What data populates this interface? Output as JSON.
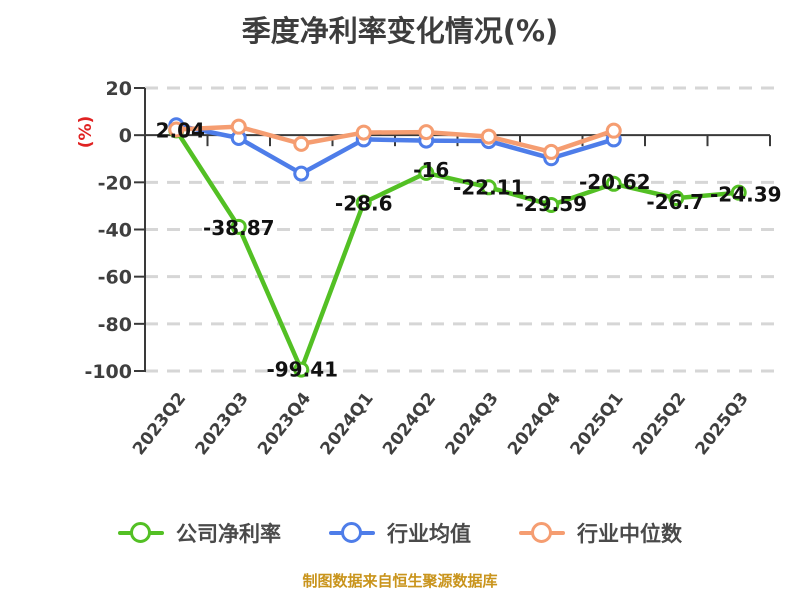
{
  "title": "季度净利率变化情况(%)",
  "y_axis_unit": "(%)",
  "source_note": "制图数据来自恒生聚源数据库",
  "colors": {
    "company": "#53c024",
    "industry_avg": "#4e7de9",
    "industry_median": "#f59d71",
    "title_text": "#3d3d3d",
    "axis_text": "#3f3f3f",
    "data_label_text": "#111111",
    "unit_label": "#e02222",
    "source_note_text": "#c9941c",
    "gridline": "#d6d6d6",
    "axis_line": "#3a3a3a",
    "point_fill": "#ffffff"
  },
  "chart_data": {
    "type": "line",
    "title": "季度净利率变化情况(%)",
    "categories": [
      "2023Q2",
      "2023Q3",
      "2023Q4",
      "2024Q1",
      "2024Q2",
      "2024Q3",
      "2024Q4",
      "2025Q1",
      "2025Q2",
      "2025Q3"
    ],
    "series": [
      {
        "name": "公司净利率",
        "color": "#53c024",
        "labels_shown": true,
        "values": [
          2.04,
          -38.87,
          -99.41,
          -28.6,
          -16,
          -22.11,
          -29.59,
          -20.62,
          -26.7,
          -24.39
        ]
      },
      {
        "name": "行业均值",
        "color": "#4e7de9",
        "labels_shown": false,
        "values": [
          4.2,
          -1.2,
          -16.3,
          -1.8,
          -2.3,
          -2.5,
          -9.8,
          -1.8,
          null,
          null
        ]
      },
      {
        "name": "行业中位数",
        "color": "#f59d71",
        "labels_shown": false,
        "values": [
          2.4,
          3.6,
          -3.7,
          1.1,
          1.3,
          -0.6,
          -7.1,
          1.9,
          null,
          null
        ]
      }
    ],
    "xlabel": "",
    "ylabel": "(%)",
    "ylim": [
      -100,
      20
    ],
    "yticks": [
      20,
      0,
      -20,
      -40,
      -60,
      -80,
      -100
    ],
    "grid": "horizontal-dashed",
    "legend_position": "bottom"
  }
}
